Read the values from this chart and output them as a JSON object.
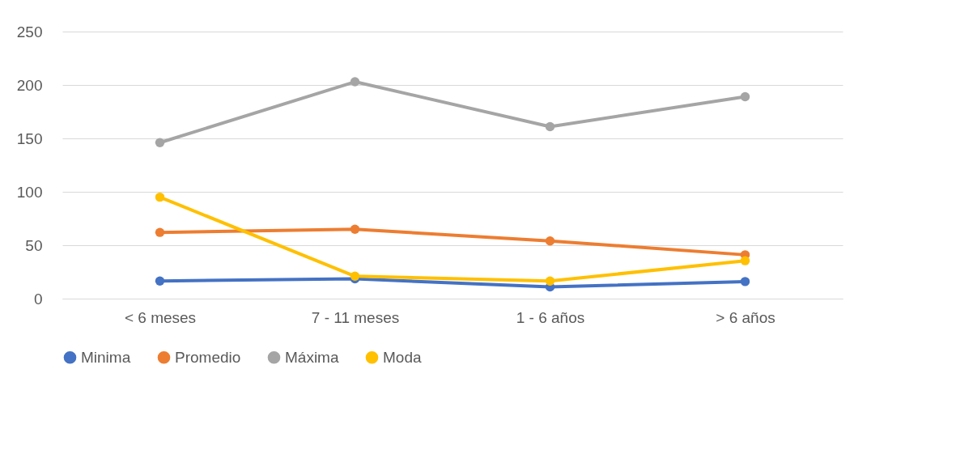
{
  "chart_data": {
    "type": "line",
    "categories": [
      "< 6 meses",
      "7 - 11 meses",
      "1 - 6 años",
      "> 6 años"
    ],
    "series": [
      {
        "name": "Minima",
        "color": "#4472c4",
        "values": [
          16.5,
          18.5,
          11,
          16
        ]
      },
      {
        "name": "Promedio",
        "color": "#ed7d31",
        "values": [
          62,
          65,
          54,
          41
        ]
      },
      {
        "name": "Máxima",
        "color": "#a5a5a5",
        "values": [
          146,
          203,
          161,
          189
        ]
      },
      {
        "name": "Moda",
        "color": "#ffc000",
        "values": [
          95,
          21,
          16.5,
          35.5
        ]
      }
    ],
    "ylim": [
      0,
      250
    ],
    "yticks": [
      0,
      50,
      100,
      150,
      200,
      250
    ],
    "grid": "y",
    "legend": "bottom",
    "marker": "circle",
    "line_style": "solid"
  }
}
